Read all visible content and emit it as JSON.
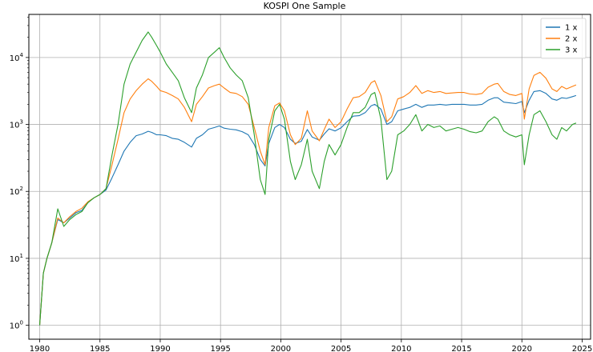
{
  "chart_data": {
    "type": "line",
    "title": "KOSPI One Sample",
    "xlabel": "",
    "ylabel": "",
    "yscale": "log",
    "xlim": [
      1979.1,
      2025.7
    ],
    "ylim": [
      0.62,
      44000
    ],
    "grid": true,
    "legend_position": "top-right",
    "x_ticks": [
      1980,
      1985,
      1990,
      1995,
      2000,
      2005,
      2010,
      2015,
      2020,
      2025
    ],
    "x_tick_labels": [
      "1980",
      "1985",
      "1990",
      "1995",
      "2000",
      "2005",
      "2010",
      "2015",
      "2020",
      "2025"
    ],
    "y_ticks": [
      1,
      10,
      100,
      1000,
      10000
    ],
    "y_tick_labels": [
      {
        "base": "10",
        "exp": "0"
      },
      {
        "base": "10",
        "exp": "1"
      },
      {
        "base": "10",
        "exp": "2"
      },
      {
        "base": "10",
        "exp": "3"
      },
      {
        "base": "10",
        "exp": "4"
      }
    ],
    "series": [
      {
        "name": "1 x",
        "color": "#1f77b4",
        "x": [
          1980.0,
          1980.3,
          1980.6,
          1981.0,
          1981.5,
          1982.0,
          1982.5,
          1983.0,
          1983.5,
          1984.0,
          1984.5,
          1985.0,
          1985.5,
          1986.0,
          1986.5,
          1987.0,
          1987.5,
          1988.0,
          1988.5,
          1989.0,
          1989.3,
          1989.7,
          1990.0,
          1990.5,
          1991.0,
          1991.5,
          1992.0,
          1992.6,
          1993.0,
          1993.5,
          1994.0,
          1994.5,
          1994.9,
          1995.3,
          1995.8,
          1996.3,
          1996.8,
          1997.3,
          1997.8,
          1998.3,
          1998.7,
          1999.0,
          1999.5,
          1999.9,
          2000.3,
          2000.8,
          2001.2,
          2001.7,
          2002.2,
          2002.6,
          2003.2,
          2003.6,
          2004.0,
          2004.5,
          2005.0,
          2005.5,
          2006.0,
          2006.5,
          2007.0,
          2007.5,
          2007.8,
          2008.3,
          2008.8,
          2009.2,
          2009.7,
          2010.2,
          2010.7,
          2011.2,
          2011.7,
          2012.2,
          2012.7,
          2013.2,
          2013.7,
          2014.2,
          2014.7,
          2015.2,
          2015.7,
          2016.2,
          2016.7,
          2017.2,
          2017.7,
          2018.0,
          2018.5,
          2019.0,
          2019.5,
          2020.0,
          2020.2,
          2020.6,
          2021.0,
          2021.5,
          2022.0,
          2022.5,
          2022.9,
          2023.3,
          2023.7,
          2024.2,
          2024.5
        ],
        "values": [
          1,
          6,
          10,
          17,
          38,
          34,
          40,
          48,
          52,
          68,
          80,
          90,
          105,
          160,
          250,
          400,
          540,
          680,
          720,
          790,
          760,
          700,
          700,
          680,
          620,
          600,
          540,
          460,
          620,
          700,
          850,
          900,
          950,
          880,
          850,
          830,
          780,
          700,
          500,
          300,
          240,
          520,
          900,
          1000,
          900,
          600,
          520,
          560,
          840,
          650,
          580,
          720,
          860,
          800,
          890,
          1100,
          1330,
          1350,
          1500,
          1900,
          2000,
          1700,
          1000,
          1100,
          1600,
          1700,
          1800,
          2000,
          1800,
          1950,
          1950,
          2000,
          1950,
          2000,
          2000,
          2000,
          1950,
          1950,
          2000,
          2300,
          2500,
          2500,
          2150,
          2100,
          2050,
          2200,
          1500,
          2300,
          3100,
          3200,
          2900,
          2400,
          2300,
          2500,
          2450,
          2600,
          2700
        ]
      },
      {
        "name": "2 x",
        "color": "#ff7f0e",
        "x": [
          1980.0,
          1980.3,
          1980.6,
          1981.0,
          1981.5,
          1982.0,
          1982.5,
          1983.0,
          1983.5,
          1984.0,
          1984.5,
          1985.0,
          1985.5,
          1986.0,
          1986.5,
          1987.0,
          1987.5,
          1988.0,
          1988.5,
          1989.0,
          1989.3,
          1989.7,
          1990.0,
          1990.5,
          1991.0,
          1991.5,
          1992.0,
          1992.6,
          1993.0,
          1993.5,
          1994.0,
          1994.5,
          1994.9,
          1995.3,
          1995.8,
          1996.3,
          1996.8,
          1997.3,
          1997.8,
          1998.3,
          1998.7,
          1999.0,
          1999.5,
          1999.9,
          2000.3,
          2000.8,
          2001.2,
          2001.7,
          2002.2,
          2002.6,
          2003.2,
          2003.6,
          2004.0,
          2004.5,
          2005.0,
          2005.5,
          2006.0,
          2006.5,
          2007.0,
          2007.5,
          2007.8,
          2008.3,
          2008.8,
          2009.2,
          2009.7,
          2010.2,
          2010.7,
          2011.2,
          2011.7,
          2012.2,
          2012.7,
          2013.2,
          2013.7,
          2014.2,
          2014.7,
          2015.2,
          2015.7,
          2016.2,
          2016.7,
          2017.2,
          2017.7,
          2018.0,
          2018.5,
          2019.0,
          2019.5,
          2020.0,
          2020.2,
          2020.6,
          2021.0,
          2021.5,
          2022.0,
          2022.5,
          2022.9,
          2023.3,
          2023.7,
          2024.2,
          2024.5
        ],
        "values": [
          1,
          6,
          10,
          17,
          40,
          34,
          42,
          50,
          56,
          70,
          80,
          90,
          110,
          250,
          600,
          1500,
          2400,
          3200,
          4000,
          4800,
          4400,
          3700,
          3200,
          3000,
          2700,
          2400,
          1800,
          1100,
          2000,
          2600,
          3500,
          3800,
          4000,
          3500,
          3000,
          2900,
          2600,
          2000,
          900,
          400,
          250,
          900,
          1900,
          2100,
          1600,
          700,
          500,
          620,
          1600,
          800,
          570,
          840,
          1200,
          900,
          1100,
          1700,
          2500,
          2600,
          3000,
          4200,
          4500,
          2700,
          1100,
          1300,
          2400,
          2600,
          3000,
          3800,
          2900,
          3200,
          3000,
          3100,
          2900,
          2950,
          3000,
          3000,
          2850,
          2800,
          2900,
          3600,
          4000,
          4100,
          3100,
          2800,
          2700,
          2900,
          1200,
          3400,
          5400,
          6000,
          4900,
          3400,
          3100,
          3700,
          3400,
          3700,
          3900
        ]
      },
      {
        "name": "3 x",
        "color": "#2ca02c",
        "x": [
          1980.0,
          1980.3,
          1980.6,
          1981.0,
          1981.5,
          1982.0,
          1982.5,
          1983.0,
          1983.5,
          1984.0,
          1984.5,
          1985.0,
          1985.5,
          1986.0,
          1986.5,
          1987.0,
          1987.5,
          1988.0,
          1988.5,
          1989.0,
          1989.3,
          1989.7,
          1990.0,
          1990.5,
          1991.0,
          1991.5,
          1992.0,
          1992.6,
          1993.0,
          1993.5,
          1994.0,
          1994.5,
          1994.9,
          1995.3,
          1995.8,
          1996.3,
          1996.8,
          1997.3,
          1997.8,
          1998.3,
          1998.7,
          1999.0,
          1999.5,
          1999.9,
          2000.3,
          2000.8,
          2001.2,
          2001.7,
          2002.2,
          2002.6,
          2003.2,
          2003.6,
          2004.0,
          2004.5,
          2005.0,
          2005.5,
          2006.0,
          2006.5,
          2007.0,
          2007.5,
          2007.8,
          2008.3,
          2008.8,
          2009.2,
          2009.7,
          2010.2,
          2010.7,
          2011.2,
          2011.7,
          2012.2,
          2012.7,
          2013.2,
          2013.7,
          2014.2,
          2014.7,
          2015.2,
          2015.7,
          2016.2,
          2016.7,
          2017.2,
          2017.7,
          2018.0,
          2018.5,
          2019.0,
          2019.5,
          2020.0,
          2020.2,
          2020.6,
          2021.0,
          2021.5,
          2022.0,
          2022.5,
          2022.9,
          2023.3,
          2023.7,
          2024.2,
          2024.5
        ],
        "values": [
          1,
          6,
          10,
          17,
          55,
          30,
          38,
          45,
          50,
          68,
          80,
          90,
          110,
          350,
          1000,
          4000,
          8000,
          12000,
          18000,
          24000,
          20000,
          15000,
          12000,
          8000,
          6000,
          4500,
          2500,
          1500,
          3500,
          5500,
          10000,
          12000,
          14000,
          10000,
          7000,
          5500,
          4500,
          2500,
          700,
          150,
          90,
          600,
          1600,
          2000,
          1200,
          280,
          150,
          250,
          600,
          200,
          110,
          280,
          500,
          350,
          500,
          900,
          1500,
          1500,
          1800,
          2800,
          3000,
          1200,
          150,
          200,
          700,
          800,
          1000,
          1400,
          800,
          1000,
          900,
          950,
          800,
          850,
          900,
          850,
          780,
          750,
          800,
          1100,
          1300,
          1200,
          800,
          700,
          650,
          700,
          250,
          700,
          1400,
          1600,
          1100,
          700,
          600,
          900,
          800,
          1000,
          1050
        ]
      }
    ]
  }
}
